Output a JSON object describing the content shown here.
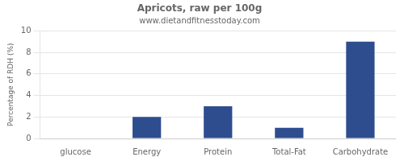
{
  "chart_data": {
    "type": "bar",
    "title": "Apricots, raw per 100g",
    "subtitle": "www.dietandfitnesstoday.com",
    "categories": [
      "glucose",
      "Energy",
      "Protein",
      "Total-Fat",
      "Carbohydrate"
    ],
    "values": [
      0,
      2,
      3,
      1,
      9
    ],
    "color": "#2e4d8f",
    "ylabel": "Percentage of RDH (%)",
    "ylim": [
      0,
      10
    ],
    "yticks": [
      0,
      2,
      4,
      6,
      8,
      10
    ],
    "grid": true
  }
}
